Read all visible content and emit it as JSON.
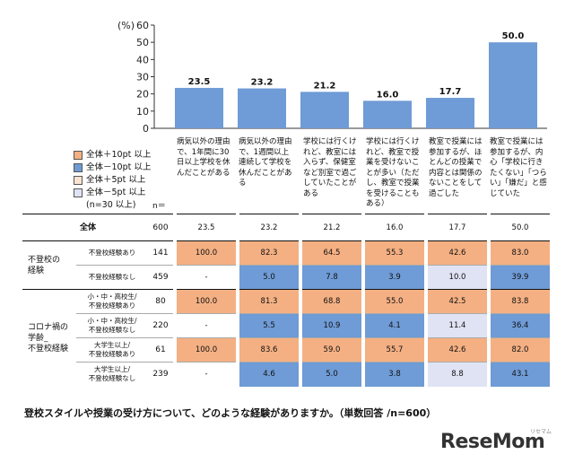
{
  "chart_data": {
    "type": "bar",
    "ylabel": "(%)",
    "ylim": [
      0,
      60
    ],
    "yticks": [
      0,
      10,
      20,
      30,
      40,
      50,
      60
    ],
    "categories": [
      "病気以外の理由で、1年間に30日以上学校を休んだことがある",
      "病気以外の理由で、1週間以上連続して学校を休んだことがある",
      "学校には行くけれど、教室には入らず、保健室など別室で過ごしていたことがある",
      "学校には行くけれど、教室で授業を受けないことが多い（ただし、教室で授業を受けることもある）",
      "教室で授業には参加するが、ほとんどの授業で内容とは関係のないことをして過ごした",
      "教室で授業には参加するが、内心「学校に行きたくない」「つらい」「嫌だ」と感じていた"
    ],
    "values": [
      23.5,
      23.2,
      21.2,
      16.0,
      17.7,
      50.0
    ],
    "bar_color": "#6f9bd6",
    "value_labels": [
      "23.5",
      "23.2",
      "21.2",
      "16.0",
      "17.7",
      "50.0"
    ]
  },
  "legend": {
    "items": [
      {
        "label": "全体＋10pt 以上",
        "color": "#f4b083"
      },
      {
        "label": "全体－10pt 以上",
        "color": "#6f9bd6"
      },
      {
        "label": "全体＋5pt 以上",
        "color": "#fbe3d2"
      },
      {
        "label": "全体－5pt 以上",
        "color": "#dfe3f3"
      }
    ],
    "note": "(n=30 以上)"
  },
  "table": {
    "n_label": "n＝",
    "rows": [
      {
        "group": "全体",
        "sub": "",
        "n": "600",
        "cells": [
          "23.5",
          "23.2",
          "21.2",
          "16.0",
          "17.7",
          "50.0"
        ],
        "colors": [
          "",
          "",
          "",
          "",
          "",
          ""
        ]
      },
      {
        "group": "不登校の\n経験",
        "sub": "不登校経験あり",
        "n": "141",
        "cells": [
          "100.0",
          "82.3",
          "64.5",
          "55.3",
          "42.6",
          "83.0"
        ],
        "colors": [
          "#f4b083",
          "#f4b083",
          "#f4b083",
          "#f4b083",
          "#f4b083",
          "#f4b083"
        ]
      },
      {
        "group": "",
        "sub": "不登校経験なし",
        "n": "459",
        "cells": [
          "-",
          "5.0",
          "7.8",
          "3.9",
          "10.0",
          "39.9"
        ],
        "colors": [
          "",
          "#6f9bd6",
          "#6f9bd6",
          "#6f9bd6",
          "#dfe3f3",
          "#6f9bd6"
        ]
      },
      {
        "group": "コロナ禍の\n学齢_\n不登校経験",
        "sub": "小・中・高校生/\n不登校経験あり",
        "n": "80",
        "cells": [
          "100.0",
          "81.3",
          "68.8",
          "55.0",
          "42.5",
          "83.8"
        ],
        "colors": [
          "#f4b083",
          "#f4b083",
          "#f4b083",
          "#f4b083",
          "#f4b083",
          "#f4b083"
        ]
      },
      {
        "group": "",
        "sub": "小・中・高校生/\n不登校経験なし",
        "n": "220",
        "cells": [
          "-",
          "5.5",
          "10.9",
          "4.1",
          "11.4",
          "36.4"
        ],
        "colors": [
          "",
          "#6f9bd6",
          "#6f9bd6",
          "#6f9bd6",
          "#dfe3f3",
          "#6f9bd6"
        ]
      },
      {
        "group": "",
        "sub": "大学生以上/\n不登校経験あり",
        "n": "61",
        "cells": [
          "100.0",
          "83.6",
          "59.0",
          "55.7",
          "42.6",
          "82.0"
        ],
        "colors": [
          "#f4b083",
          "#f4b083",
          "#f4b083",
          "#f4b083",
          "#f4b083",
          "#f4b083"
        ]
      },
      {
        "group": "",
        "sub": "大学生以上/\n不登校経験なし",
        "n": "239",
        "cells": [
          "-",
          "4.6",
          "5.0",
          "3.8",
          "8.8",
          "43.1"
        ],
        "colors": [
          "",
          "#6f9bd6",
          "#6f9bd6",
          "#6f9bd6",
          "#dfe3f3",
          "#6f9bd6"
        ]
      }
    ]
  },
  "caption": "登校スタイルや授業の受け方について、どのような経験がありますか。（単数回答 /n=600）",
  "logo": {
    "text": "ReseMom",
    "sub": "リセマム"
  }
}
